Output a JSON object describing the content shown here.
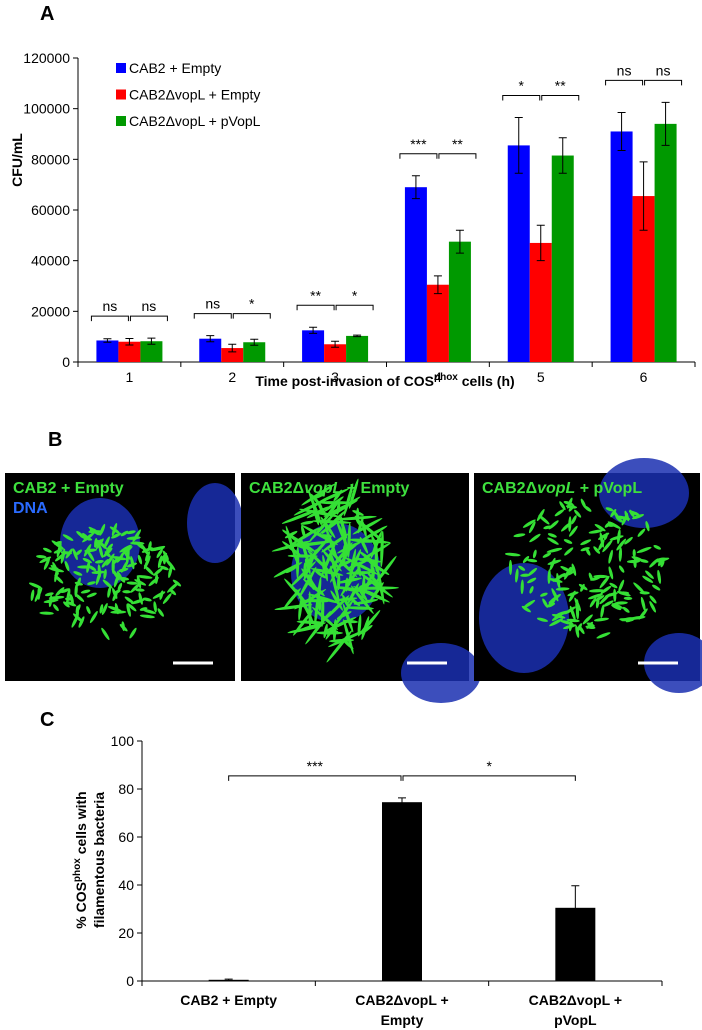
{
  "chart_data": [
    {
      "type": "bar",
      "panel_label": "A",
      "y_label": "CFU/mL",
      "x_label": {
        "text": "Time post-invasion of COS",
        "sup": "phox",
        "after": " cells (h)"
      },
      "categories": [
        "1",
        "2",
        "3",
        "4",
        "5",
        "6"
      ],
      "series": [
        {
          "name": "CAB2 + Empty",
          "color": "#0000ff",
          "values": [
            8500,
            9200,
            12500,
            69000,
            85500,
            91000
          ],
          "errors": [
            700,
            1200,
            1200,
            4500,
            11000,
            7500
          ]
        },
        {
          "name": "CAB2ΔvopL  + Empty",
          "color": "#ff0000",
          "values": [
            8000,
            5500,
            7000,
            30500,
            47000,
            65500
          ],
          "errors": [
            1300,
            1500,
            1200,
            3500,
            7000,
            13500
          ]
        },
        {
          "name": "CAB2ΔvopL  + pVopL",
          "color": "#009900",
          "values": [
            8200,
            7800,
            10300,
            47500,
            81500,
            94000
          ],
          "errors": [
            1200,
            1200,
            300,
            4500,
            7000,
            8500
          ]
        }
      ],
      "ylim": [
        0,
        120000
      ],
      "yticks": [
        0,
        20000,
        40000,
        60000,
        80000,
        100000,
        120000
      ],
      "legend": "upper-left",
      "significance": [
        [
          "ns",
          "ns"
        ],
        [
          "ns",
          "*"
        ],
        [
          "**",
          "*"
        ],
        [
          "***",
          "**"
        ],
        [
          "*",
          "**"
        ],
        [
          "ns",
          "ns"
        ]
      ]
    },
    {
      "type": "bar",
      "panel_label": "C",
      "y_label": [
        {
          "text": "% COS",
          "sup": "phox",
          "after": " cells with"
        },
        "filamentous bacteria"
      ],
      "categories": [
        [
          "CAB2 + Empty"
        ],
        [
          "CAB2ΔvopL +",
          "Empty"
        ],
        [
          "CAB2ΔvopL +",
          "pVopL"
        ]
      ],
      "color": "#000000",
      "values": [
        0.5,
        74.5,
        30.5
      ],
      "errors": [
        0.3,
        1.8,
        9.2
      ],
      "ylim": [
        0,
        100
      ],
      "yticks": [
        0,
        20,
        40,
        60,
        80,
        100
      ],
      "significance": [
        "***",
        "*"
      ]
    }
  ],
  "panel_b": {
    "panel_label": "B",
    "images": [
      {
        "label": [
          "CAB2 + Empty"
        ],
        "stain": "DNA"
      },
      {
        "label": [
          "CAB2Δ",
          "vopL",
          " + Empty"
        ]
      },
      {
        "label": [
          "CAB2Δ",
          "vopL",
          " + pVopL"
        ]
      }
    ]
  }
}
